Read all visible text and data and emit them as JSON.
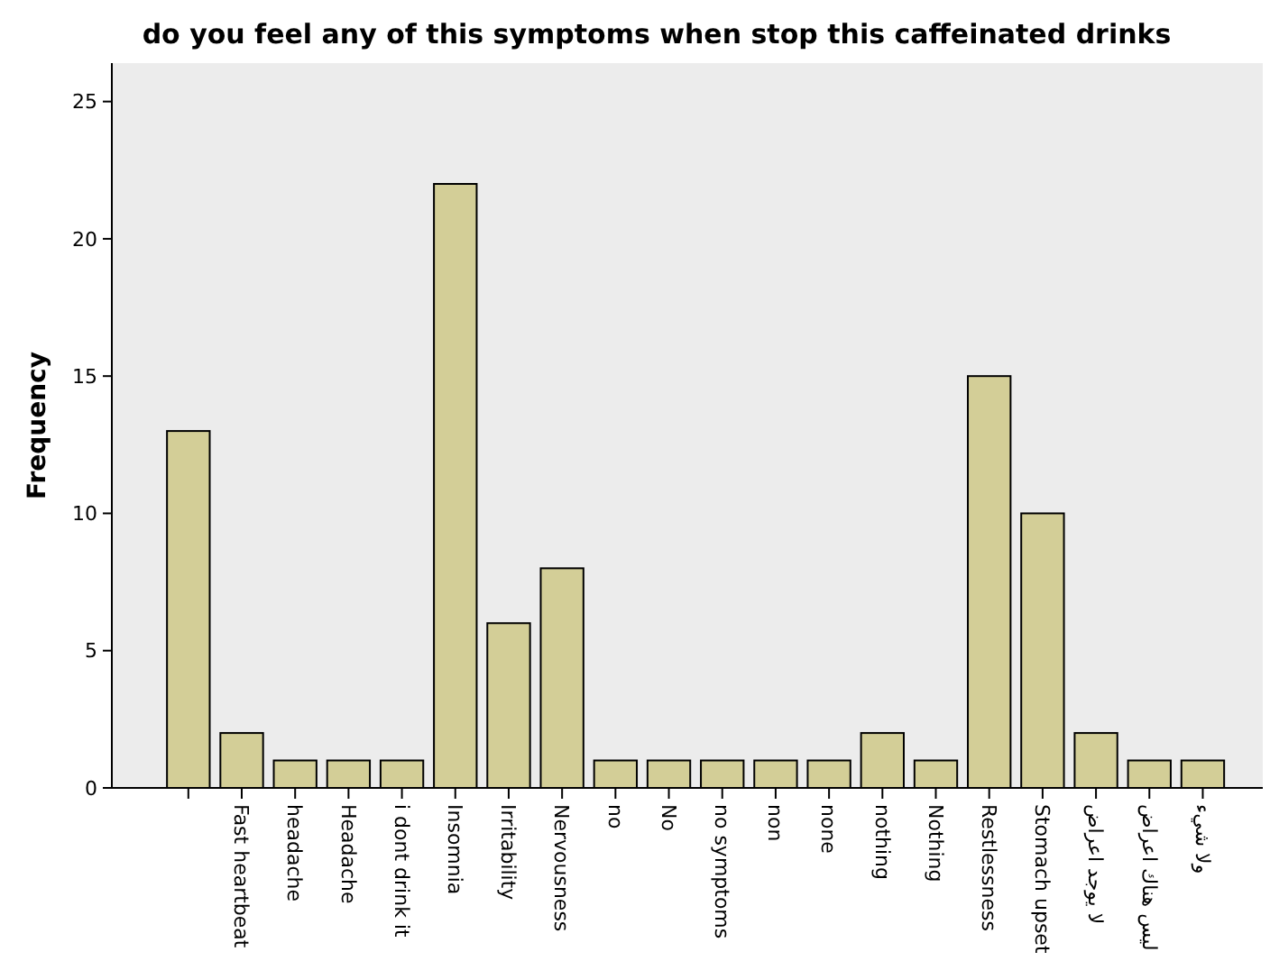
{
  "chart_data": {
    "type": "bar",
    "title": "do you feel any of this symptoms when stop this caffeinated drinks",
    "ylabel": "Frequency",
    "categories": [
      null,
      "Fast heartbeat",
      "headache",
      "Headache",
      "i dont drink it",
      "Insomnia",
      "Irritability",
      "Nervousness",
      "no",
      "No",
      "no symptoms",
      "non",
      "none",
      "nothing",
      "Nothing",
      "Restlessness",
      "Stomach upset",
      "لا يوجد اعراض",
      "ليس هناك اعراض",
      "ولا شيء"
    ],
    "values": [
      13,
      2,
      1,
      1,
      1,
      22,
      6,
      8,
      1,
      1,
      1,
      1,
      1,
      2,
      1,
      15,
      10,
      2,
      1,
      1
    ],
    "color": "#d3ce97",
    "ylim": [
      0,
      26.4
    ],
    "yticks": [
      0,
      5,
      10,
      15,
      20,
      25
    ],
    "grid": false
  }
}
